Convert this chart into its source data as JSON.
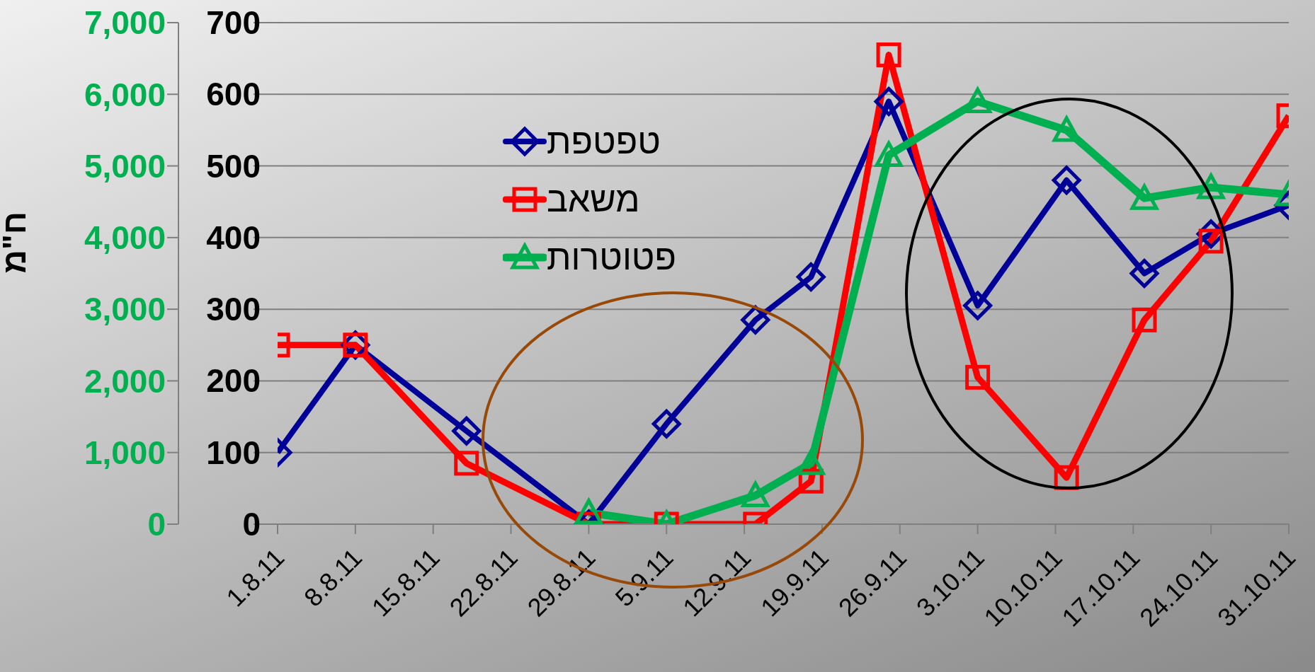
{
  "chart_data": {
    "type": "line",
    "ylabel": "ח\"מ",
    "xlim": [
      "--08-01",
      "--10-31"
    ],
    "xticks": [
      {
        "value": "--08-01",
        "label": "1.8.11"
      },
      {
        "value": "--08-08",
        "label": "8.8.11"
      },
      {
        "value": "--08-15",
        "label": "15.8.11"
      },
      {
        "value": "--08-22",
        "label": "22.8.11"
      },
      {
        "value": "--08-29",
        "label": "29.8.11"
      },
      {
        "value": "--09-05",
        "label": "5.9.11"
      },
      {
        "value": "--09-12",
        "label": "12.9.11"
      },
      {
        "value": "--09-19",
        "label": "19.9.11"
      },
      {
        "value": "--09-26",
        "label": "26.9.11"
      },
      {
        "value": "--10-03",
        "label": "3.10.11"
      },
      {
        "value": "--10-10",
        "label": "10.10.11"
      },
      {
        "value": "--10-17",
        "label": "17.10.11"
      },
      {
        "value": "--10-24",
        "label": "24.10.11"
      },
      {
        "value": "--10-31",
        "label": "31.10.11"
      }
    ],
    "ylim": [
      0,
      7000
    ],
    "yticks": [
      {
        "value": 0,
        "label": "0"
      },
      {
        "value": 1000,
        "label": "1,000"
      },
      {
        "value": 2000,
        "label": "2,000"
      },
      {
        "value": 3000,
        "label": "3,000"
      },
      {
        "value": 4000,
        "label": "4,000"
      },
      {
        "value": 5000,
        "label": "5,000"
      },
      {
        "value": 6000,
        "label": "6,000"
      },
      {
        "value": 7000,
        "label": "7,000"
      }
    ],
    "y2lim": [
      0,
      700
    ],
    "y2ticks": [
      0,
      100,
      200,
      300,
      400,
      500,
      600,
      700
    ],
    "grid": "y",
    "legend": "top left",
    "series": [
      {
        "name": "טפטפת",
        "color": "#000099",
        "marker": "diamond",
        "axis": "y2",
        "x": [
          "--08-01",
          "--08-08",
          "--08-18",
          "--08-29",
          "--09-05",
          "--09-13",
          "--09-18",
          "--09-25",
          "--10-03",
          "--10-11",
          "--10-18",
          "--10-24",
          "--10-31"
        ],
        "values": [
          100,
          250,
          130,
          0,
          140,
          285,
          345,
          590,
          305,
          480,
          350,
          405,
          445
        ]
      },
      {
        "name": "משאב",
        "color": "#ff0000",
        "marker": "square",
        "axis": "y2",
        "x": [
          "--08-01",
          "--08-08",
          "--08-18",
          "--08-29",
          "--09-05",
          "--09-13",
          "--09-18",
          "--09-25",
          "--10-03",
          "--10-11",
          "--10-18",
          "--10-24",
          "--10-31"
        ],
        "values": [
          250,
          250,
          85,
          0,
          0,
          0,
          60,
          655,
          205,
          65,
          285,
          395,
          570
        ]
      },
      {
        "name": "פטוטרות",
        "color": "#00b050",
        "marker": "triangle",
        "x": [
          "--08-29",
          "--09-05",
          "--09-13",
          "--09-18",
          "--09-25",
          "--10-03",
          "--10-11",
          "--10-18",
          "--10-24",
          "--10-31"
        ],
        "values": [
          160,
          0,
          400,
          850,
          5150,
          5900,
          5500,
          4550,
          4700,
          4600
        ]
      }
    ]
  }
}
